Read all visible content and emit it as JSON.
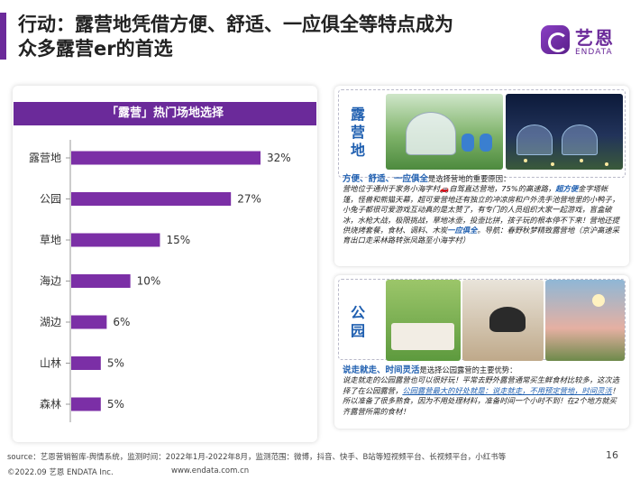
{
  "header": {
    "title_line1": "行动：露营地凭借方便、舒适、一应俱全等特点成为",
    "title_line2": "众多露营er的首选",
    "logo_cn": "艺恩",
    "logo_en": "ENDATA"
  },
  "chart_data": {
    "type": "bar",
    "orientation": "horizontal",
    "title": "「露营」热门场地选择",
    "categories": [
      "露营地",
      "公园",
      "草地",
      "海边",
      "湖边",
      "山林",
      "森林"
    ],
    "values": [
      32,
      27,
      15,
      10,
      6,
      5,
      5
    ],
    "value_labels": [
      "32%",
      "27%",
      "15%",
      "10%",
      "6%",
      "5%",
      "5%"
    ],
    "unit": "%",
    "xlim": [
      0,
      32
    ],
    "grid": false,
    "legend": "none",
    "bar_color": "#7b2fa6"
  },
  "camp_panel": {
    "label": "露营地",
    "lead_highlight": "方便、舒适、一应俱全",
    "lead_rest": "是选择营地的重要原因：",
    "body_start": "营地位于通州于家务小海字村",
    "body_car": "🚗",
    "body_mid": "自驾直达营地，75%的高速路，",
    "body_em1": "超方便",
    "body_mid2": "金字塔帐篷，怪兽和熊猫天幕，超可爱营地还有独立的冲凉房和户外洗手池营地里的小鸭子，小兔子都很可爱游戏互动真的是太赞了，有专门的人员组织大家一起游戏，盲盒破冰，水枪大战，极限挑战，草地冰壶，投壶比拼，孩子玩的根本停不下来！营地还提供烧烤套餐，食材、调料、木炭",
    "body_em2": "一应俱全",
    "body_end": "。导航：春野秋梦精致露营地（京沪高速采育出口走采林路转张凤路至小海字村）"
  },
  "park_panel": {
    "label": "公园",
    "lead_highlight": "说走就走、时间灵活",
    "lead_rest": "是选择公园露营的主要优势：",
    "body_start": "说走就走的公园露营也可以很好玩！平常去野外露营通常买生鲜食材比较多，这次选择了在公园露营，",
    "body_em1": "公园露营最大的好处就是：说走就走，不用预定营地，时间灵活",
    "body_end": "！所以准备了很多熟食，因为不用处理材料，准备时间一个小时不到！在2个地方就买齐露营所需的食材！"
  },
  "footer": {
    "source": "source：艺恩营销智库-舆情系统，监测时间：2022年1月-2022年8月，监测范围：微博，抖音、快手、B站等短视频平台、长视频平台，小红书等",
    "copyright": "©2022.09 艺恩 ENDATA Inc.",
    "website": "www.endata.com.cn",
    "page_number": "16"
  }
}
